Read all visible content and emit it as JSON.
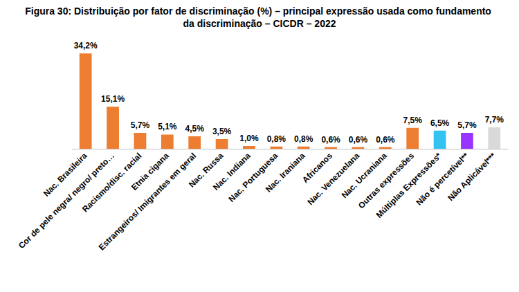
{
  "chart_data": {
    "type": "bar",
    "title": "Figura 30: Distribuição por fator de discriminação (%) – principal expressão usada como fundamento da discriminação – CICDR – 2022",
    "categories": [
      "Nac. Brasileira",
      "Cor de pele negra/ negro/ preto…",
      "Racismo/disc. racial",
      "Etnia cigana",
      "Estrangeiros/ Imigrantes em geral",
      "Nac. Russa",
      "Nac. Indiana",
      "Nac. Portuguesa",
      "Nac. Iraniana",
      "Africanos",
      "Nac. Venezuelana",
      "Nac. Ucraniana",
      "Outras expressões",
      "Múltiplas Expressões*",
      "Não é percetível**",
      "Não Aplicável***"
    ],
    "values": [
      34.2,
      15.1,
      5.7,
      5.1,
      4.5,
      3.5,
      1.0,
      0.8,
      0.8,
      0.6,
      0.6,
      0.6,
      7.5,
      6.5,
      5.7,
      7.7
    ],
    "value_labels": [
      "34,2%",
      "15,1%",
      "5,7%",
      "5,1%",
      "4,5%",
      "3,5%",
      "1,0%",
      "0,8%",
      "0,8%",
      "0,6%",
      "0,6%",
      "0,6%",
      "7,5%",
      "6,5%",
      "5,7%",
      "7,7%"
    ],
    "colors": [
      "#ed7d31",
      "#ed7d31",
      "#ed7d31",
      "#ed7d31",
      "#ed7d31",
      "#ed7d31",
      "#ed7d31",
      "#ed7d31",
      "#ed7d31",
      "#ed7d31",
      "#ed7d31",
      "#ed7d31",
      "#ed7d31",
      "#33c3f0",
      "#9933ff",
      "#d9d9d9"
    ],
    "ylim": [
      0,
      36
    ],
    "yticks": [
      0,
      36
    ],
    "grid": false,
    "data_labels": true,
    "tick_labels": "x"
  }
}
